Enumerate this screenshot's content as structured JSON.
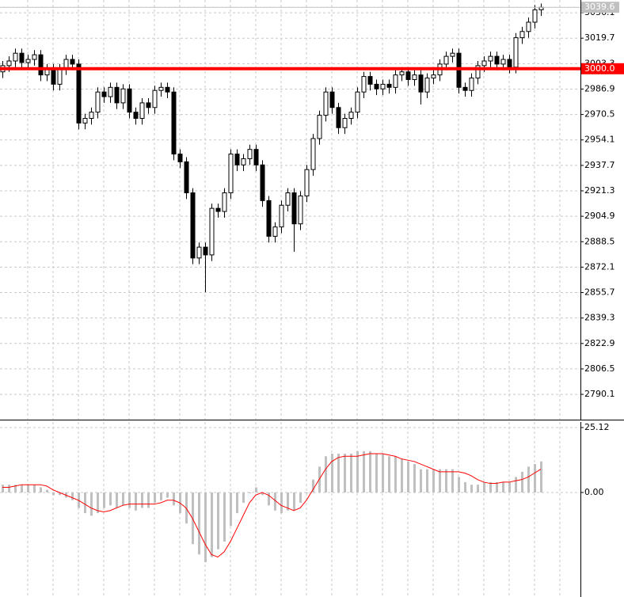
{
  "chart_data": [
    {
      "type": "candlestick",
      "up_color": "#ffffff",
      "down_color": "#000000",
      "grid": true,
      "open": [
        2998,
        3002,
        3005,
        3010,
        3004,
        3006,
        3009,
        2996,
        3000,
        2990,
        3000,
        3006,
        3003,
        2965,
        2968,
        2972,
        2985,
        2982,
        2988,
        2978,
        2987,
        2972,
        2968,
        2978,
        2975,
        2986,
        2988,
        2985,
        2945,
        2940,
        2920,
        2878,
        2885,
        2880,
        2910,
        2908,
        2920,
        2945,
        2938,
        2942,
        2948,
        2938,
        2915,
        2892,
        2898,
        2912,
        2920,
        2900,
        2918,
        2935,
        2955,
        2970,
        2985,
        2975,
        2962,
        2968,
        2972,
        2985,
        2995,
        2990,
        2987,
        2990,
        2988,
        2996,
        2998,
        2993,
        2996,
        2985,
        2994,
        2996,
        3003,
        3008,
        3010,
        2988,
        2986,
        2994,
        3002,
        3005,
        3008,
        3003,
        3006,
        3001,
        3020,
        3024,
        3030,
        3038
      ],
      "high": [
        3005,
        3008,
        3013,
        3013,
        3009,
        3012,
        3012,
        3003,
        3003,
        3003,
        3009,
        3009,
        3006,
        2971,
        2975,
        2988,
        2988,
        2991,
        2991,
        2990,
        2990,
        2975,
        2981,
        2981,
        2989,
        2991,
        2991,
        2988,
        2948,
        2943,
        2923,
        2888,
        2888,
        2913,
        2913,
        2923,
        2948,
        2948,
        2945,
        2951,
        2951,
        2941,
        2918,
        2901,
        2915,
        2923,
        2923,
        2921,
        2938,
        2958,
        2973,
        2988,
        2988,
        2978,
        2971,
        2975,
        2988,
        2998,
        2998,
        2993,
        2993,
        2993,
        2999,
        3001,
        3001,
        2999,
        2999,
        2997,
        2999,
        3006,
        3011,
        3013,
        3013,
        2991,
        2997,
        3005,
        3008,
        3011,
        3011,
        3009,
        3009,
        3023,
        3027,
        3033,
        3041,
        3042
      ],
      "low": [
        2994,
        2998,
        3001,
        3000,
        3000,
        3002,
        2992,
        2992,
        2986,
        2986,
        2996,
        2999,
        2961,
        2961,
        2964,
        2968,
        2978,
        2978,
        2974,
        2974,
        2968,
        2964,
        2964,
        2971,
        2971,
        2982,
        2981,
        2941,
        2936,
        2916,
        2874,
        2874,
        2856,
        2876,
        2904,
        2904,
        2916,
        2934,
        2934,
        2938,
        2934,
        2911,
        2888,
        2888,
        2894,
        2908,
        2882,
        2896,
        2914,
        2931,
        2951,
        2966,
        2971,
        2958,
        2958,
        2964,
        2968,
        2981,
        2986,
        2983,
        2983,
        2984,
        2984,
        2992,
        2989,
        2989,
        2977,
        2981,
        2990,
        2992,
        2999,
        3004,
        2984,
        2982,
        2982,
        2990,
        2998,
        3001,
        2999,
        2999,
        2997,
        2997,
        3016,
        3020,
        3026,
        3034
      ],
      "close": [
        3002,
        3005,
        3010,
        3004,
        3006,
        3009,
        2996,
        3000,
        2990,
        3000,
        3006,
        3003,
        2965,
        2968,
        2972,
        2985,
        2982,
        2988,
        2978,
        2987,
        2972,
        2968,
        2978,
        2975,
        2986,
        2988,
        2985,
        2945,
        2940,
        2920,
        2878,
        2885,
        2880,
        2910,
        2908,
        2920,
        2945,
        2938,
        2942,
        2948,
        2938,
        2915,
        2892,
        2898,
        2912,
        2920,
        2900,
        2918,
        2935,
        2955,
        2970,
        2985,
        2975,
        2962,
        2968,
        2972,
        2985,
        2995,
        2990,
        2987,
        2990,
        2988,
        2996,
        2998,
        2993,
        2996,
        2985,
        2994,
        2996,
        3003,
        3008,
        3010,
        2988,
        2986,
        2994,
        3002,
        3005,
        3008,
        3003,
        3006,
        3001,
        3020,
        3024,
        3030,
        3038,
        3039.6
      ],
      "ylim": [
        2773.8,
        3044.3
      ],
      "yticks": [
        3036.1,
        3019.7,
        3003.3,
        2986.9,
        2970.5,
        2954.1,
        2937.7,
        2921.3,
        2904.9,
        2888.5,
        2872.1,
        2855.7,
        2839.3,
        2822.9,
        2806.5,
        2790.1
      ],
      "hline": {
        "value": 3000,
        "label": "3000.0",
        "color": "#ff0000"
      },
      "last_price": 3039.6
    },
    {
      "type": "macd",
      "grid": true,
      "series": [
        {
          "style": "histogram",
          "color": "#c0c0c0",
          "values": [
            3,
            3,
            3,
            3,
            3,
            3,
            2,
            1,
            -1,
            -1,
            -2,
            -3,
            -6,
            -8,
            -9,
            -8,
            -6,
            -5,
            -6,
            -5,
            -6,
            -7,
            -6,
            -6,
            -4,
            -3,
            -2,
            -5,
            -8,
            -12,
            -20,
            -24,
            -27,
            -25,
            -22,
            -19,
            -13,
            -8,
            -4,
            0,
            2,
            -1,
            -5,
            -7,
            -8,
            -7,
            -7,
            -4,
            0,
            5,
            10,
            14,
            15,
            15,
            15,
            15,
            16,
            16,
            16,
            15,
            15,
            14,
            14,
            13,
            12,
            11,
            9,
            9,
            9,
            9,
            9,
            9,
            6,
            4,
            3,
            3,
            4,
            4,
            4,
            4,
            4,
            6,
            8,
            10,
            11,
            12
          ]
        },
        {
          "style": "line",
          "color": "#ff0000",
          "values": [
            2,
            2,
            2.5,
            3,
            3,
            3,
            3,
            2.5,
            1,
            0,
            -1,
            -2,
            -3,
            -4.5,
            -6,
            -7,
            -7.5,
            -7,
            -6,
            -5,
            -4.5,
            -4.5,
            -4.5,
            -4.5,
            -4.5,
            -4,
            -3,
            -3,
            -4,
            -6,
            -10,
            -15,
            -20,
            -24,
            -25,
            -23,
            -19,
            -14,
            -9,
            -4,
            -1,
            0,
            -1,
            -3,
            -5,
            -6,
            -7,
            -6,
            -3,
            1,
            5,
            9,
            12,
            13.5,
            14,
            14,
            14,
            14.5,
            15,
            15,
            15,
            14.5,
            14,
            13,
            12.5,
            12,
            11,
            10,
            9,
            8,
            8,
            8,
            8,
            7.5,
            6.5,
            5,
            4,
            3.5,
            3.5,
            4,
            4,
            4.5,
            5,
            6,
            7.5,
            9
          ]
        }
      ],
      "ylim": [
        -40.44,
        27.26
      ],
      "yticks": [
        25.12,
        {
          "value": 0,
          "label": "0.00"
        }
      ]
    }
  ]
}
